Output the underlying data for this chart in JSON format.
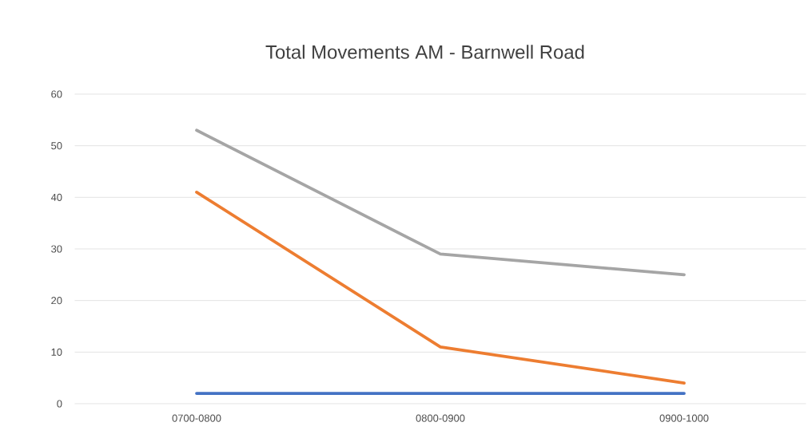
{
  "chart_data": {
    "type": "line",
    "title": "Total Movements AM - Barnwell Road",
    "categories": [
      "0700-0800",
      "0800-0900",
      "0900-1000"
    ],
    "series": [
      {
        "color": "#4472c4",
        "values": [
          2,
          2,
          2
        ]
      },
      {
        "color": "#ed7d31",
        "values": [
          41,
          11,
          4
        ]
      },
      {
        "color": "#a5a5a5",
        "values": [
          53,
          29,
          25
        ]
      }
    ],
    "ylim": [
      0,
      60
    ],
    "yticks": [
      0,
      10,
      20,
      30,
      40,
      50,
      60
    ],
    "grid": "y"
  }
}
